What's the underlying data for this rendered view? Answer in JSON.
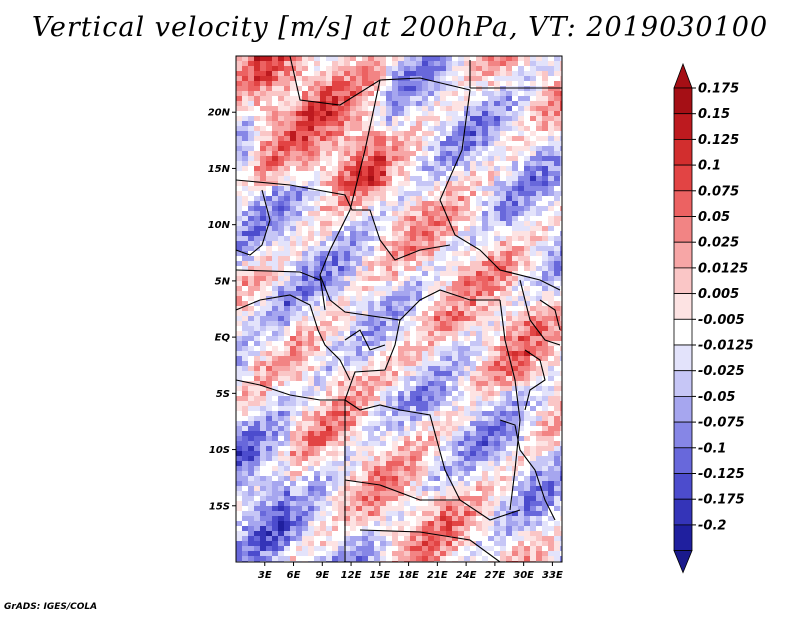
{
  "title": "Vertical velocity [m/s] at 200hPa, VT: 2019030100",
  "credit": "GrADS: IGES/COLA",
  "map": {
    "lat_labels": [
      {
        "label": "20N",
        "lat": 20
      },
      {
        "label": "15N",
        "lat": 15
      },
      {
        "label": "10N",
        "lat": 10
      },
      {
        "label": "5N",
        "lat": 5
      },
      {
        "label": "EQ",
        "lat": 0
      },
      {
        "label": "5S",
        "lat": -5
      },
      {
        "label": "10S",
        "lat": -10
      },
      {
        "label": "15S",
        "lat": -15
      }
    ],
    "lon_labels": [
      {
        "label": "3E",
        "lon": 3
      },
      {
        "label": "6E",
        "lon": 6
      },
      {
        "label": "9E",
        "lon": 9
      },
      {
        "label": "12E",
        "lon": 12
      },
      {
        "label": "15E",
        "lon": 15
      },
      {
        "label": "18E",
        "lon": 18
      },
      {
        "label": "21E",
        "lon": 21
      },
      {
        "label": "24E",
        "lon": 24
      },
      {
        "label": "27E",
        "lon": 27
      },
      {
        "label": "30E",
        "lon": 30
      },
      {
        "label": "33E",
        "lon": 33
      }
    ],
    "lon_range": [
      0,
      34
    ],
    "lat_range": [
      -20,
      25
    ]
  },
  "colorbar": {
    "levels": [
      {
        "label": "0.175",
        "color": "#a50f15"
      },
      {
        "label": "0.15",
        "color": "#bd1a1f"
      },
      {
        "label": "0.125",
        "color": "#d22e2e"
      },
      {
        "label": "0.1",
        "color": "#e24444"
      },
      {
        "label": "0.075",
        "color": "#ec6262"
      },
      {
        "label": "0.05",
        "color": "#f28484"
      },
      {
        "label": "0.025",
        "color": "#f7a6a6"
      },
      {
        "label": "0.0125",
        "color": "#fac6c6"
      },
      {
        "label": "0.005",
        "color": "#fde3e3"
      },
      {
        "label": "-0.005",
        "color": "#ffffff"
      },
      {
        "label": "-0.0125",
        "color": "#e3e3fb"
      },
      {
        "label": "-0.025",
        "color": "#c6c6f6"
      },
      {
        "label": "-0.05",
        "color": "#a6a6ef"
      },
      {
        "label": "-0.075",
        "color": "#8686e6"
      },
      {
        "label": "-0.1",
        "color": "#6868db"
      },
      {
        "label": "-0.125",
        "color": "#4c4ccd"
      },
      {
        "label": "-0.175",
        "color": "#3434b8"
      },
      {
        "label": "-0.2",
        "color": "#1f1f9e"
      }
    ],
    "top_color": "#a50f15",
    "bottom_color": "#1a1a8c"
  }
}
